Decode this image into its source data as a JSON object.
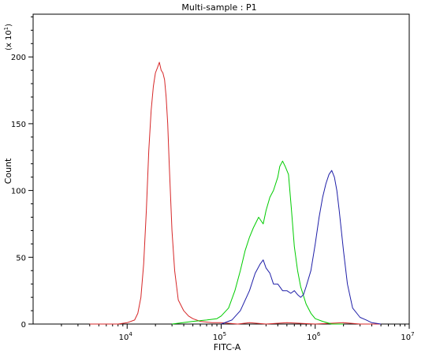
{
  "chart_data": {
    "type": "line",
    "title": "Multi-sample : P1",
    "xlabel": "FITC-A",
    "ylabel": "Count",
    "y_multiplier_label": {
      "prefix": "(x 10",
      "exponent": "1",
      "suffix": ")"
    },
    "x_scale": "log",
    "xlim": [
      1000,
      10000000
    ],
    "ylim": [
      0,
      232
    ],
    "x_ticks": [
      {
        "value": 10000,
        "base": "10",
        "exp": "4"
      },
      {
        "value": 100000,
        "base": "10",
        "exp": "5"
      },
      {
        "value": 1000000,
        "base": "10",
        "exp": "6"
      },
      {
        "value": 10000000,
        "base": "10",
        "exp": "7"
      }
    ],
    "y_ticks": [
      0,
      50,
      100,
      150,
      200
    ],
    "grid": false,
    "legend": "none",
    "series": [
      {
        "color": "#d62728",
        "x": [
          4000,
          8000,
          10000,
          12000,
          13000,
          14000,
          15000,
          16000,
          17000,
          18000,
          19000,
          20000,
          21000,
          22000,
          23000,
          24000,
          25000,
          26000,
          27000,
          28000,
          30000,
          32000,
          35000,
          40000,
          45000,
          50000,
          60000,
          80000,
          100000,
          150000,
          200000,
          300000,
          500000,
          1000000,
          2000000,
          3000000,
          5000000
        ],
        "y": [
          0,
          0,
          1,
          3,
          8,
          20,
          45,
          85,
          130,
          160,
          178,
          188,
          192,
          196,
          190,
          188,
          183,
          170,
          150,
          120,
          70,
          40,
          18,
          10,
          6,
          4,
          2,
          1,
          1,
          0,
          1,
          0,
          1,
          0,
          1,
          0,
          0
        ]
      },
      {
        "color": "#00cc00",
        "x": [
          30000,
          50000,
          70000,
          90000,
          100000,
          120000,
          140000,
          160000,
          180000,
          200000,
          220000,
          250000,
          280000,
          300000,
          330000,
          360000,
          400000,
          420000,
          450000,
          480000,
          520000,
          560000,
          600000,
          650000,
          700000,
          800000,
          900000,
          1000000,
          1200000,
          1500000,
          2000000
        ],
        "y": [
          0,
          2,
          3,
          4,
          6,
          12,
          25,
          40,
          55,
          65,
          72,
          80,
          75,
          85,
          95,
          100,
          110,
          118,
          122,
          118,
          112,
          85,
          58,
          40,
          28,
          15,
          8,
          4,
          2,
          0,
          0
        ]
      },
      {
        "color": "#1f1fa8",
        "x": [
          100000,
          130000,
          160000,
          200000,
          230000,
          260000,
          280000,
          300000,
          330000,
          360000,
          400000,
          450000,
          500000,
          550000,
          600000,
          650000,
          700000,
          750000,
          800000,
          900000,
          1000000,
          1100000,
          1200000,
          1300000,
          1400000,
          1500000,
          1600000,
          1700000,
          1800000,
          2000000,
          2200000,
          2500000,
          3000000,
          3500000,
          4000000,
          5000000
        ],
        "y": [
          0,
          3,
          10,
          25,
          38,
          45,
          48,
          42,
          38,
          30,
          30,
          25,
          25,
          23,
          25,
          22,
          20,
          22,
          28,
          40,
          60,
          80,
          95,
          105,
          112,
          115,
          110,
          100,
          85,
          55,
          30,
          12,
          5,
          3,
          1,
          0
        ]
      }
    ]
  }
}
